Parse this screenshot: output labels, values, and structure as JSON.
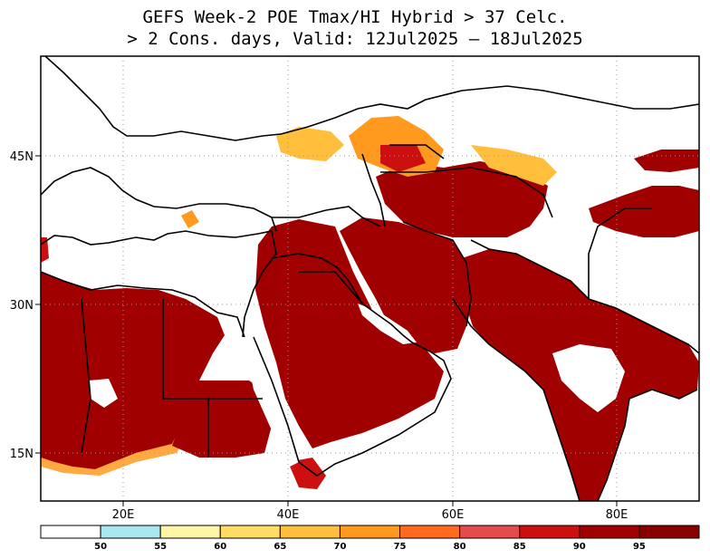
{
  "title": {
    "line1": "GEFS Week-2 POE Tmax/HI Hybrid > 37 Celc.",
    "line2": "> 2 Cons. days, Valid: 12Jul2025 – 18Jul2025"
  },
  "map": {
    "lon_range": [
      10,
      90
    ],
    "lat_range": [
      10,
      55
    ],
    "x_ticks": [
      {
        "label": "20E",
        "lon": 20
      },
      {
        "label": "40E",
        "lon": 40
      },
      {
        "label": "60E",
        "lon": 60
      },
      {
        "label": "80E",
        "lon": 80
      }
    ],
    "y_ticks": [
      {
        "label": "45N",
        "lat": 45
      },
      {
        "label": "30N",
        "lat": 30
      },
      {
        "label": "15N",
        "lat": 15
      }
    ],
    "gridlines": "dotted"
  },
  "colorbar": {
    "levels": [
      "50",
      "55",
      "60",
      "65",
      "70",
      "75",
      "80",
      "85",
      "90",
      "95"
    ],
    "colors": [
      "#ffffff",
      "#a8e6f0",
      "#fff5a8",
      "#ffdc64",
      "#ffbe3c",
      "#ff9a1e",
      "#ff6a1e",
      "#e64b4b",
      "#cc1010",
      "#a00000",
      "#8a0000"
    ]
  },
  "legend_colors": {
    "land": "#ffffff",
    "border": "#000000",
    "grid": "#999999"
  }
}
